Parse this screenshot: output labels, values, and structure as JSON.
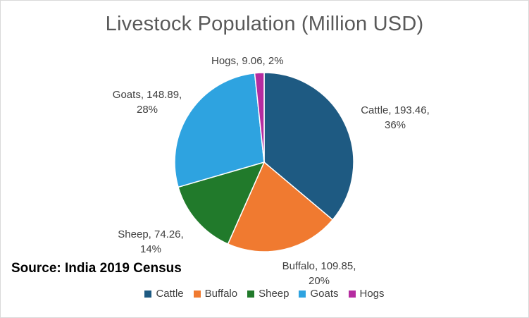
{
  "chart_data": {
    "type": "pie",
    "title": "Livestock Population (Million USD)",
    "source": "Source: India 2019 Census",
    "legend_position": "bottom",
    "slices": [
      {
        "name": "Cattle",
        "value": 193.46,
        "percent": "36%",
        "color": "#1e5a82"
      },
      {
        "name": "Buffalo",
        "value": 109.85,
        "percent": "20%",
        "color": "#f07a30"
      },
      {
        "name": "Sheep",
        "value": 74.26,
        "percent": "14%",
        "color": "#217a2b"
      },
      {
        "name": "Goats",
        "value": 148.89,
        "percent": "28%",
        "color": "#2ea3e0"
      },
      {
        "name": "Hogs",
        "value": 9.06,
        "percent": "2%",
        "color": "#b52ca0"
      }
    ]
  }
}
